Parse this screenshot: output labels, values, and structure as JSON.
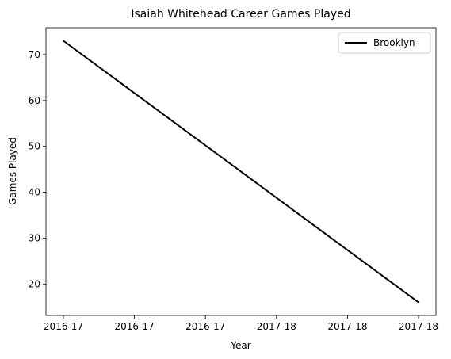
{
  "chart_data": {
    "type": "line",
    "title": "Isaiah Whitehead Career Games Played",
    "xlabel": "Year",
    "ylabel": "Games Played",
    "x": [
      "2016-17",
      "2017-18"
    ],
    "series": [
      {
        "name": "Brooklyn",
        "values": [
          73,
          16
        ],
        "color": "#000000"
      }
    ],
    "x_ticks": [
      "2016-17",
      "2016-17",
      "2016-17",
      "2017-18",
      "2017-18",
      "2017-18"
    ],
    "y_ticks": [
      20,
      30,
      40,
      50,
      60,
      70
    ],
    "ylim": [
      13.15,
      75.85
    ],
    "legend": "top-right",
    "grid": false
  }
}
